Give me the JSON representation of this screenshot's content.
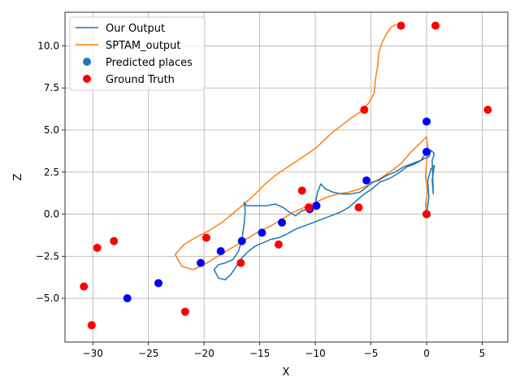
{
  "chart_data": {
    "type": "line",
    "xlabel": "X",
    "ylabel": "Z",
    "xlim": [
      -32.5,
      7.3
    ],
    "ylim": [
      -7.6,
      12.0
    ],
    "x_ticks": [
      -30,
      -25,
      -20,
      -15,
      -10,
      -5,
      0,
      5
    ],
    "y_ticks": [
      -5.0,
      -2.5,
      0.0,
      2.5,
      5.0,
      7.5,
      10.0
    ],
    "grid": true,
    "legend_position": "top-left",
    "colors": {
      "our_output": "#1f77b4",
      "sptam": "#ff7f0e",
      "predicted": "#0000ff",
      "predicted_legend": "#1f77b4",
      "ground_truth": "#ff0000"
    },
    "legend": {
      "our_output": "Our Output",
      "sptam": "SPTAM_output",
      "predicted": "Predicted places",
      "ground_truth": "Ground Truth"
    },
    "series": [
      {
        "name": "Our Output",
        "kind": "line",
        "points": [
          [
            0.0,
            0.0
          ],
          [
            0.2,
            1.0
          ],
          [
            0.1,
            2.0
          ],
          [
            0.4,
            2.7
          ],
          [
            0.7,
            2.9
          ],
          [
            0.5,
            2.0
          ],
          [
            0.6,
            1.2
          ],
          [
            0.5,
            3.2
          ],
          [
            0.7,
            3.6
          ],
          [
            0.4,
            3.8
          ],
          [
            0.2,
            3.4
          ],
          [
            -0.2,
            3.3
          ],
          [
            -1.0,
            3.0
          ],
          [
            -1.8,
            2.8
          ],
          [
            -2.6,
            2.4
          ],
          [
            -3.4,
            2.1
          ],
          [
            -4.2,
            1.9
          ],
          [
            -4.9,
            1.5
          ],
          [
            -5.6,
            1.2
          ],
          [
            -6.3,
            0.8
          ],
          [
            -7.0,
            0.4
          ],
          [
            -7.8,
            0.1
          ],
          [
            -8.6,
            -0.1
          ],
          [
            -9.4,
            -0.3
          ],
          [
            -10.2,
            -0.5
          ],
          [
            -11.0,
            -0.7
          ],
          [
            -11.8,
            -0.9
          ],
          [
            -12.6,
            -1.2
          ],
          [
            -13.3,
            -1.4
          ],
          [
            -14.0,
            -1.5
          ],
          [
            -14.7,
            -1.7
          ],
          [
            -15.4,
            -1.9
          ],
          [
            -16.0,
            -2.2
          ],
          [
            -16.6,
            -2.6
          ],
          [
            -17.1,
            -3.1
          ],
          [
            -17.6,
            -3.6
          ],
          [
            -18.1,
            -3.9
          ],
          [
            -18.7,
            -3.8
          ],
          [
            -19.1,
            -3.3
          ],
          [
            -18.7,
            -3.0
          ],
          [
            -18.1,
            -2.9
          ],
          [
            -17.4,
            -2.7
          ],
          [
            -16.9,
            -2.2
          ],
          [
            -16.6,
            -1.5
          ],
          [
            -16.4,
            -0.6
          ],
          [
            -16.3,
            0.2
          ],
          [
            -16.4,
            0.7
          ],
          [
            -16.2,
            0.5
          ],
          [
            -15.4,
            0.5
          ],
          [
            -14.4,
            0.5
          ],
          [
            -13.6,
            0.6
          ],
          [
            -12.9,
            0.4
          ],
          [
            -12.3,
            0.1
          ],
          [
            -11.8,
            -0.1
          ],
          [
            -11.2,
            0.2
          ],
          [
            -10.6,
            0.3
          ],
          [
            -10.0,
            0.6
          ],
          [
            -9.8,
            1.3
          ],
          [
            -9.5,
            1.8
          ],
          [
            -9.1,
            1.5
          ],
          [
            -8.4,
            1.3
          ],
          [
            -7.6,
            1.2
          ],
          [
            -6.8,
            1.2
          ],
          [
            -6.0,
            1.3
          ],
          [
            -5.4,
            1.6
          ],
          [
            -4.9,
            1.9
          ],
          [
            -4.3,
            2.0
          ],
          [
            -3.6,
            2.3
          ],
          [
            -2.8,
            2.5
          ],
          [
            -2.1,
            2.8
          ],
          [
            -1.3,
            3.0
          ],
          [
            -0.5,
            3.2
          ],
          [
            -0.1,
            3.6
          ],
          [
            0.0,
            3.7
          ]
        ]
      },
      {
        "name": "SPTAM_output",
        "kind": "line",
        "points": [
          [
            0.0,
            0.0
          ],
          [
            -0.1,
            0.6
          ],
          [
            0.1,
            1.4
          ],
          [
            -0.1,
            2.2
          ],
          [
            0.0,
            3.0
          ],
          [
            0.1,
            4.0
          ],
          [
            0.0,
            4.6
          ],
          [
            -0.6,
            4.2
          ],
          [
            -1.4,
            3.7
          ],
          [
            -2.3,
            3.0
          ],
          [
            -3.1,
            2.6
          ],
          [
            -4.0,
            2.2
          ],
          [
            -5.0,
            1.8
          ],
          [
            -6.0,
            1.5
          ],
          [
            -7.0,
            1.3
          ],
          [
            -8.0,
            1.2
          ],
          [
            -9.0,
            1.0
          ],
          [
            -10.0,
            0.7
          ],
          [
            -11.0,
            0.4
          ],
          [
            -12.0,
            0.1
          ],
          [
            -13.0,
            -0.3
          ],
          [
            -14.0,
            -0.7
          ],
          [
            -15.0,
            -1.0
          ],
          [
            -16.0,
            -1.4
          ],
          [
            -17.0,
            -1.8
          ],
          [
            -18.0,
            -2.2
          ],
          [
            -19.0,
            -2.6
          ],
          [
            -20.0,
            -3.0
          ],
          [
            -21.0,
            -3.3
          ],
          [
            -22.0,
            -3.1
          ],
          [
            -22.6,
            -2.4
          ],
          [
            -21.8,
            -1.8
          ],
          [
            -20.8,
            -1.4
          ],
          [
            -19.6,
            -1.0
          ],
          [
            -18.4,
            -0.5
          ],
          [
            -17.3,
            0.1
          ],
          [
            -16.4,
            0.6
          ],
          [
            -15.4,
            1.2
          ],
          [
            -14.5,
            1.8
          ],
          [
            -13.6,
            2.3
          ],
          [
            -12.7,
            2.7
          ],
          [
            -11.8,
            3.1
          ],
          [
            -10.9,
            3.5
          ],
          [
            -10.0,
            3.9
          ],
          [
            -9.2,
            4.4
          ],
          [
            -8.4,
            4.9
          ],
          [
            -7.6,
            5.3
          ],
          [
            -6.8,
            5.7
          ],
          [
            -5.9,
            6.1
          ],
          [
            -5.2,
            6.6
          ],
          [
            -4.7,
            7.2
          ],
          [
            -4.6,
            8.0
          ],
          [
            -4.4,
            8.8
          ],
          [
            -4.3,
            9.6
          ],
          [
            -4.0,
            10.2
          ],
          [
            -3.6,
            10.7
          ],
          [
            -3.2,
            11.1
          ],
          [
            -2.7,
            11.3
          ]
        ]
      },
      {
        "name": "Predicted places",
        "kind": "scatter",
        "points": [
          [
            0.0,
            0.0
          ],
          [
            0.0,
            3.7
          ],
          [
            0.0,
            5.5
          ],
          [
            -5.4,
            2.0
          ],
          [
            -9.9,
            0.5
          ],
          [
            -10.5,
            0.3
          ],
          [
            -13.0,
            -0.5
          ],
          [
            -14.8,
            -1.1
          ],
          [
            -16.6,
            -1.6
          ],
          [
            -18.5,
            -2.2
          ],
          [
            -20.3,
            -2.9
          ],
          [
            -24.1,
            -4.1
          ],
          [
            -26.9,
            -5.0
          ]
        ]
      },
      {
        "name": "Ground Truth",
        "kind": "scatter",
        "points": [
          [
            -2.3,
            11.2
          ],
          [
            0.8,
            11.2
          ],
          [
            5.5,
            6.2
          ],
          [
            -5.6,
            6.2
          ],
          [
            -11.2,
            1.4
          ],
          [
            -6.1,
            0.4
          ],
          [
            -10.6,
            0.4
          ],
          [
            -13.3,
            -1.8
          ],
          [
            -16.7,
            -2.9
          ],
          [
            -19.8,
            -1.4
          ],
          [
            -21.7,
            -5.8
          ],
          [
            -28.1,
            -1.6
          ],
          [
            -29.6,
            -2.0
          ],
          [
            -30.8,
            -4.3
          ],
          [
            -30.1,
            -6.6
          ],
          [
            0.0,
            0.0
          ]
        ]
      }
    ]
  }
}
